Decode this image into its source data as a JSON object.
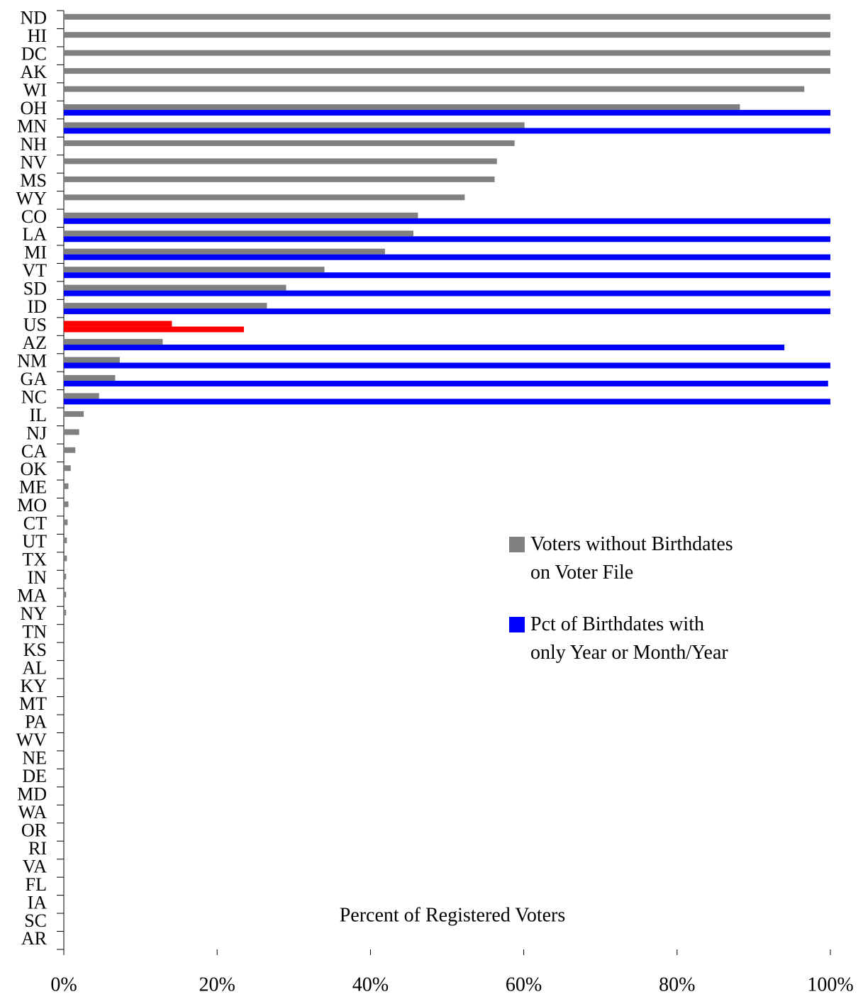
{
  "chart_data": {
    "type": "bar",
    "orientation": "horizontal",
    "x_label": "Percent of Registered Voters",
    "categories": [
      "ND",
      "HI",
      "DC",
      "AK",
      "WI",
      "OH",
      "MN",
      "NH",
      "NV",
      "MS",
      "WY",
      "CO",
      "LA",
      "MI",
      "VT",
      "SD",
      "ID",
      "US",
      "AZ",
      "NM",
      "GA",
      "NC",
      "IL",
      "NJ",
      "CA",
      "OK",
      "ME",
      "MO",
      "CT",
      "UT",
      "TX",
      "IN",
      "MA",
      "NY",
      "TN",
      "KS",
      "AL",
      "KY",
      "MT",
      "PA",
      "WV",
      "NE",
      "DE",
      "MD",
      "WA",
      "OR",
      "RI",
      "VA",
      "FL",
      "IA",
      "SC",
      "AR"
    ],
    "series": [
      {
        "name": "Voters without Birthdates\non Voter File",
        "color": "#808080",
        "values": [
          100,
          100,
          100,
          100,
          96.6,
          88.2,
          60.1,
          58.8,
          56.5,
          56.2,
          52.3,
          46.2,
          45.6,
          41.9,
          34.0,
          29.0,
          26.5,
          14.1,
          12.9,
          7.3,
          6.7,
          4.6,
          2.6,
          2.0,
          1.5,
          0.9,
          0.6,
          0.6,
          0.5,
          0.4,
          0.4,
          0.3,
          0.3,
          0.3,
          0.1,
          0.1,
          0.1,
          0.1,
          0.1,
          0.1,
          0,
          0,
          0,
          0,
          0,
          0,
          0,
          0,
          0,
          0,
          0,
          0
        ]
      },
      {
        "name": "Pct of Birthdates with\nonly Year or Month/Year",
        "color": "#0000ff",
        "values": [
          null,
          null,
          null,
          null,
          null,
          100,
          100,
          null,
          null,
          null,
          null,
          100,
          100,
          100,
          100,
          100,
          100,
          23.5,
          94.0,
          100,
          99.7,
          100,
          null,
          null,
          null,
          null,
          null,
          null,
          null,
          null,
          null,
          null,
          null,
          null,
          null,
          null,
          null,
          null,
          null,
          null,
          null,
          null,
          null,
          null,
          null,
          null,
          null,
          null,
          null,
          null,
          null,
          null
        ]
      }
    ],
    "highlight_index": 17,
    "highlight_color": "#ff0000",
    "xlim": [
      0,
      100
    ],
    "xticks": [
      {
        "value": 0,
        "label": "0%"
      },
      {
        "value": 20,
        "label": "20%"
      },
      {
        "value": 40,
        "label": "40%"
      },
      {
        "value": 60,
        "label": "60%"
      },
      {
        "value": 80,
        "label": "80%"
      },
      {
        "value": 100,
        "label": "100%"
      }
    ],
    "legend_position": "right"
  }
}
